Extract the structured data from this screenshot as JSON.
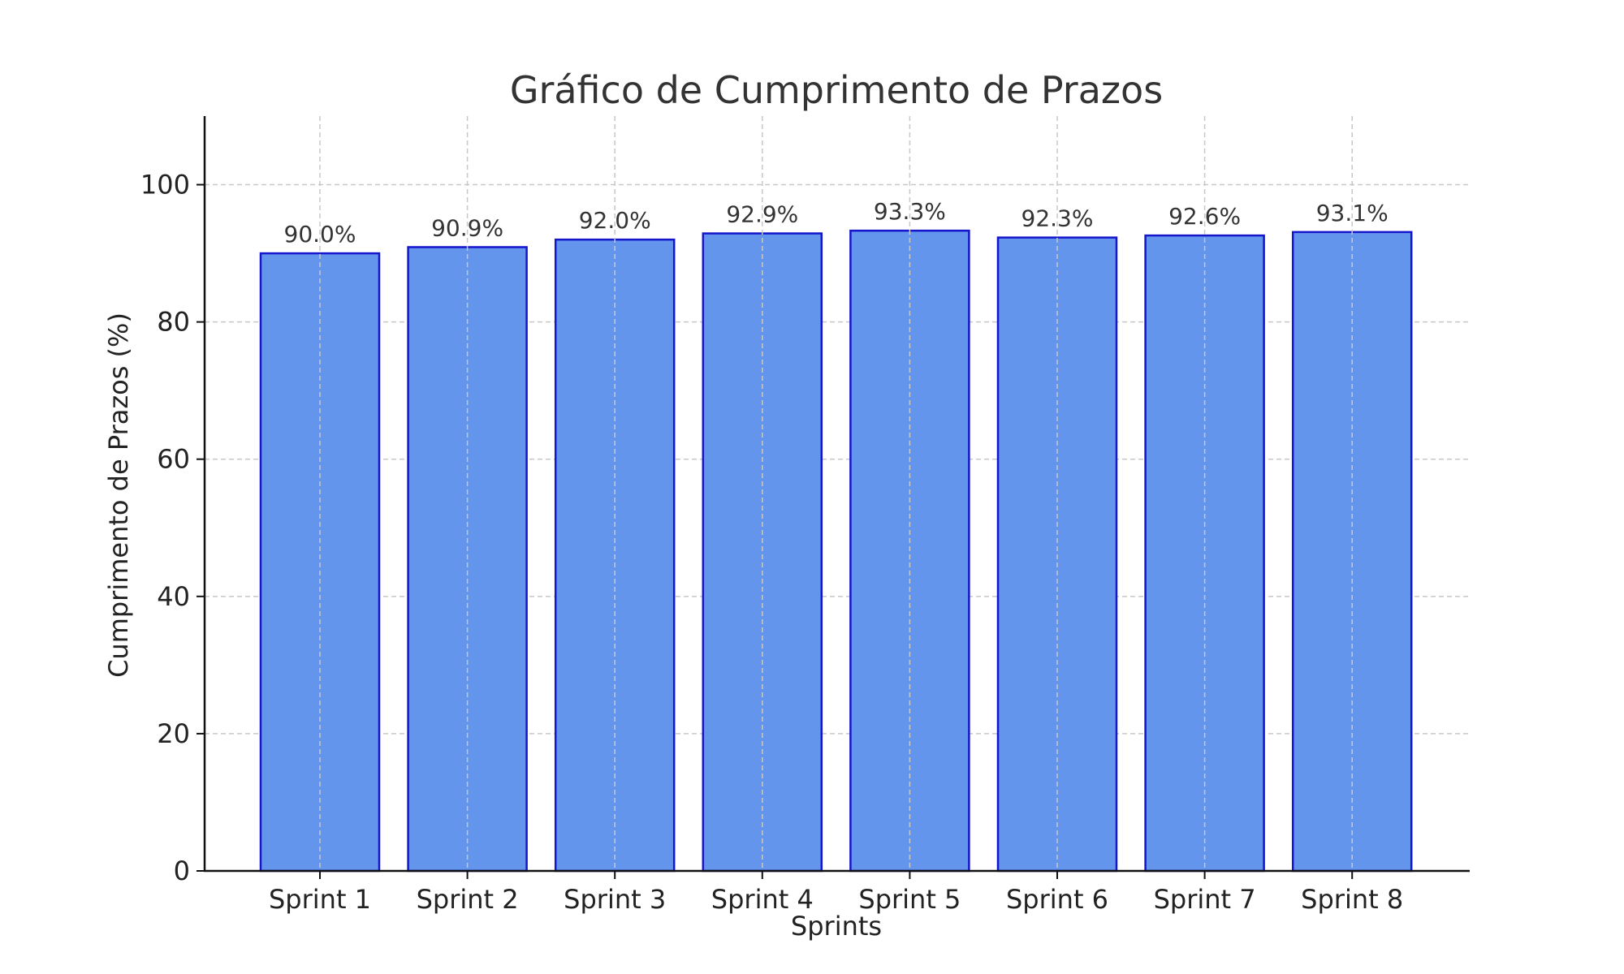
{
  "chart_data": {
    "type": "bar",
    "title": "Gráfico de Cumprimento de Prazos",
    "xlabel": "Sprints",
    "ylabel": "Cumprimento de Prazos (%)",
    "categories": [
      "Sprint 1",
      "Sprint 2",
      "Sprint 3",
      "Sprint 4",
      "Sprint 5",
      "Sprint 6",
      "Sprint 7",
      "Sprint 8"
    ],
    "values": [
      90.0,
      90.9,
      92.0,
      92.9,
      93.3,
      92.3,
      92.6,
      93.1
    ],
    "data_labels": [
      "90.0%",
      "90.9%",
      "92.0%",
      "92.9%",
      "93.3%",
      "92.3%",
      "92.6%",
      "93.1%"
    ],
    "ylim": [
      0,
      110
    ],
    "yticks": [
      0,
      20,
      40,
      60,
      80,
      100
    ],
    "grid": true,
    "colors": {
      "bar_fill": "#6495ED",
      "bar_edge": "#1515CC"
    }
  }
}
